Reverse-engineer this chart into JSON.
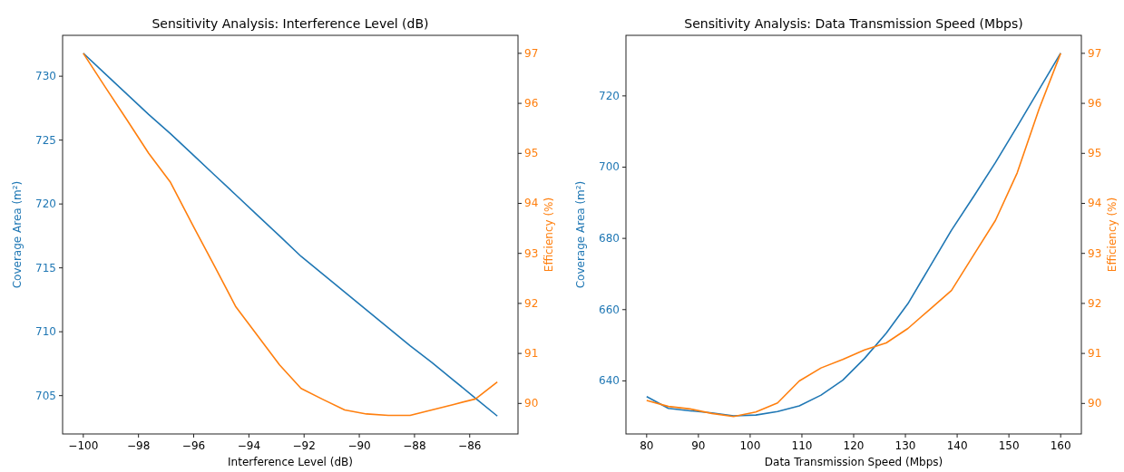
{
  "chart_data": [
    {
      "type": "line",
      "title": "Sensitivity Analysis: Interference Level (dB)",
      "xlabel": "Interference Level (dB)",
      "ylabel": "Coverage Area (m²)",
      "y2label": "Efficiency (%)",
      "x": [
        -100,
        -99.21,
        -98.42,
        -97.63,
        -96.84,
        -96.05,
        -95.26,
        -94.47,
        -93.68,
        -92.89,
        -92.11,
        -91.32,
        -90.53,
        -89.74,
        -88.95,
        -88.16,
        -87.37,
        -86.58,
        -85.79,
        -85
      ],
      "series": [
        {
          "color": "#1f77b4",
          "values": [
            731.8,
            730.2,
            728.6,
            727.0,
            725.5,
            723.9,
            722.3,
            720.7,
            719.1,
            717.5,
            715.9,
            714.5,
            713.1,
            711.7,
            710.3,
            708.9,
            707.6,
            706.2,
            704.8,
            703.4
          ]
        },
        {
          "color": "#ff7f0e",
          "axis": "y2",
          "values": [
            97.0,
            96.33,
            95.67,
            95.0,
            94.42,
            93.58,
            92.76,
            91.93,
            91.35,
            90.77,
            90.3,
            90.08,
            89.87,
            89.79,
            89.76,
            89.76,
            89.87,
            89.98,
            90.09,
            90.43
          ]
        }
      ],
      "xlim": [
        -100.75,
        -84.25
      ],
      "ylim": [
        702.0,
        733.2
      ],
      "y2lim": [
        89.39,
        97.36
      ],
      "xticks": [
        {
          "value": -100,
          "label": "−100"
        },
        {
          "value": -98,
          "label": "−98"
        },
        {
          "value": -96,
          "label": "−96"
        },
        {
          "value": -94,
          "label": "−94"
        },
        {
          "value": -92,
          "label": "−92"
        },
        {
          "value": -90,
          "label": "−90"
        },
        {
          "value": -88,
          "label": "−88"
        },
        {
          "value": -86,
          "label": "−86"
        }
      ],
      "yticks": [
        705,
        710,
        715,
        720,
        725,
        730
      ],
      "y2ticks": [
        90,
        91,
        92,
        93,
        94,
        95,
        96,
        97
      ]
    },
    {
      "type": "line",
      "title": "Sensitivity Analysis: Data Transmission Speed (Mbps)",
      "xlabel": "Data Transmission Speed (Mbps)",
      "ylabel": "Coverage Area (m²)",
      "y2label": "Efficiency (%)",
      "x": [
        80,
        84.2,
        88.4,
        92.6,
        96.8,
        101.1,
        105.3,
        109.5,
        113.7,
        117.9,
        122.1,
        126.3,
        130.5,
        134.7,
        138.9,
        143.2,
        147.4,
        151.6,
        155.8,
        160
      ],
      "series": [
        {
          "color": "#1f77b4",
          "values": [
            635.6,
            632.3,
            631.6,
            631.0,
            630.2,
            630.4,
            631.4,
            633.0,
            636.0,
            640.2,
            646.3,
            653.4,
            661.7,
            672.0,
            682.3,
            691.8,
            701.3,
            711.4,
            721.7,
            732.0
          ]
        },
        {
          "color": "#ff7f0e",
          "axis": "y2",
          "values": [
            90.06,
            89.94,
            89.89,
            89.8,
            89.74,
            89.83,
            90.01,
            90.45,
            90.71,
            90.88,
            91.07,
            91.21,
            91.5,
            91.88,
            92.26,
            92.97,
            93.66,
            94.61,
            95.88,
            97.0
          ]
        }
      ],
      "xlim": [
        76,
        164
      ],
      "ylim": [
        625.1,
        737.0
      ],
      "y2lim": [
        89.39,
        97.36
      ],
      "xticks": [
        80,
        90,
        100,
        110,
        120,
        130,
        140,
        150,
        160
      ],
      "yticks": [
        640,
        660,
        680,
        700,
        720
      ],
      "y2ticks": [
        90,
        91,
        92,
        93,
        94,
        95,
        96,
        97
      ]
    }
  ]
}
